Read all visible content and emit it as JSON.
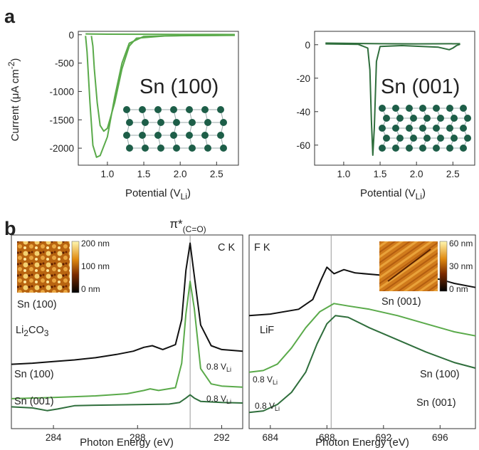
{
  "panel_labels": {
    "a": "a",
    "b": "b"
  },
  "colors": {
    "light_green": "#5aaa4a",
    "dark_green": "#2f6e3c",
    "black": "#111111",
    "grid_line": "#999999",
    "atom": "#1d5e48"
  },
  "chart_data": [
    {
      "type": "line",
      "panel": "a-left",
      "material_label": "Sn (100)",
      "xlabel": "Potential (V",
      "xlabel_sub": "Li",
      "xlabel_close": ")",
      "ylabel": "Current (μA cm",
      "ylabel_sup": "-2",
      "ylabel_close": ")",
      "xlim": [
        0.6,
        2.8
      ],
      "ylim": [
        -2300,
        60
      ],
      "xticks": [
        1.0,
        1.5,
        2.0,
        2.5
      ],
      "xtick_labels": [
        "1.0",
        "1.5",
        "2.0",
        "2.5"
      ],
      "yticks": [
        0,
        -500,
        -1000,
        -1500,
        -2000
      ],
      "ytick_labels": [
        "0",
        "-500",
        "-1000",
        "-1500",
        "-2000"
      ],
      "series": [
        {
          "color": "#5aaa4a",
          "x": [
            2.75,
            2.0,
            1.5,
            1.3,
            1.2,
            1.1,
            1.0,
            0.9,
            0.85,
            0.8,
            0.76,
            0.72,
            0.7
          ],
          "y": [
            -10,
            -15,
            -30,
            -150,
            -500,
            -1100,
            -1800,
            -2130,
            -2160,
            -1950,
            -1200,
            -300,
            -20
          ]
        },
        {
          "color": "#5aaa4a",
          "x": [
            2.75,
            1.8,
            1.4,
            1.3,
            1.2,
            1.1,
            1.0,
            0.95,
            0.9,
            0.86,
            0.82,
            0.8,
            0.78
          ],
          "y": [
            -8,
            -20,
            -60,
            -200,
            -600,
            -1200,
            -1650,
            -1700,
            -1600,
            -1200,
            -600,
            -200,
            -20
          ]
        },
        {
          "color": "#5aaa4a",
          "x": [
            0.7,
            1.0,
            1.5,
            2.0,
            2.5,
            2.75
          ],
          "y": [
            15,
            10,
            8,
            5,
            5,
            4
          ]
        }
      ]
    },
    {
      "type": "line",
      "panel": "a-right",
      "material_label": "Sn (001)",
      "xlabel": "Potential (V",
      "xlabel_sub": "Li",
      "xlabel_close": ")",
      "xlim": [
        0.6,
        2.8
      ],
      "ylim": [
        -72,
        8
      ],
      "xticks": [
        1.0,
        1.5,
        2.0,
        2.5
      ],
      "xtick_labels": [
        "1.0",
        "1.5",
        "2.0",
        "2.5"
      ],
      "yticks": [
        0,
        -20,
        -40,
        -60
      ],
      "ytick_labels": [
        "0",
        "-20",
        "-40",
        "-60"
      ],
      "series": [
        {
          "color": "#2f6e3c",
          "x": [
            0.75,
            1.2,
            1.33,
            1.36,
            1.38,
            1.4,
            1.42,
            1.45,
            1.5,
            1.8,
            2.3,
            2.45,
            2.5,
            2.55,
            2.6
          ],
          "y": [
            0.5,
            0.2,
            -2,
            -15,
            -45,
            -66,
            -50,
            -10,
            -1,
            -0.5,
            -1.5,
            -3,
            -2,
            -0.5,
            0.3
          ]
        },
        {
          "color": "#2f6e3c",
          "x": [
            0.75,
            1.5,
            2.0,
            2.6
          ],
          "y": [
            1,
            0.6,
            0.5,
            0.6
          ]
        }
      ]
    },
    {
      "type": "line",
      "panel": "b-left",
      "edge_label": "C K",
      "peak_label": "π*",
      "peak_sub": "(C=O)",
      "xlabel": "Photon Energy (eV)",
      "xlim": [
        282,
        293
      ],
      "xticks": [
        284,
        288,
        292
      ],
      "xtick_labels": [
        "284",
        "288",
        "292"
      ],
      "reference_line_x": 290.5,
      "series": [
        {
          "name": "Li₂CO₃",
          "color": "#111111",
          "x": [
            282,
            283,
            284,
            285,
            286,
            287,
            287.8,
            288.3,
            288.7,
            289.2,
            289.8,
            290.1,
            290.3,
            290.5,
            290.7,
            291,
            291.5,
            292,
            293
          ],
          "y": [
            0.78,
            0.8,
            0.83,
            0.86,
            0.9,
            0.96,
            1.02,
            1.09,
            1.12,
            1.05,
            1.14,
            1.6,
            2.5,
            3.0,
            2.4,
            1.5,
            1.12,
            1.05,
            1.02
          ]
        },
        {
          "name": "Sn (100)",
          "annotation": "0.8 V",
          "annotation_sub": "Li",
          "color": "#5aaa4a",
          "x": [
            282,
            284,
            286,
            287.5,
            288.3,
            288.6,
            289,
            289.8,
            290.1,
            290.3,
            290.5,
            290.7,
            291,
            291.5,
            292,
            293
          ],
          "y": [
            0.15,
            0.17,
            0.2,
            0.24,
            0.3,
            0.33,
            0.3,
            0.35,
            0.8,
            1.7,
            2.3,
            1.8,
            0.7,
            0.42,
            0.38,
            0.36
          ]
        },
        {
          "name": "Sn (001)",
          "annotation": "0.8 V",
          "annotation_sub": "Li",
          "color": "#2f6e3c",
          "x": [
            282,
            283,
            283.7,
            284.2,
            285,
            286,
            288,
            289.5,
            290,
            290.3,
            290.5,
            290.7,
            291,
            292,
            293
          ],
          "y": [
            0.0,
            -0.02,
            -0.07,
            -0.04,
            0.02,
            0.03,
            0.04,
            0.05,
            0.08,
            0.16,
            0.22,
            0.16,
            0.1,
            0.08,
            0.07
          ]
        }
      ],
      "inset": {
        "label": "Sn (100)",
        "colorbar_labels": [
          "200 nm",
          "100 nm",
          "0 nm"
        ]
      }
    },
    {
      "type": "line",
      "panel": "b-right",
      "edge_label": "F K",
      "xlabel": "Photon Energy (eV)",
      "xlim": [
        682.5,
        698.5
      ],
      "xticks": [
        684,
        688,
        692,
        696
      ],
      "xtick_labels": [
        "684",
        "688",
        "692",
        "696"
      ],
      "reference_line_x": 688.3,
      "series": [
        {
          "name": "LiF",
          "color": "#111111",
          "x": [
            682.5,
            684,
            686,
            687,
            687.6,
            688,
            688.5,
            689.2,
            690,
            692,
            694,
            696,
            697,
            698.5
          ],
          "y": [
            1.3,
            1.32,
            1.38,
            1.5,
            1.75,
            1.9,
            1.82,
            1.87,
            1.83,
            1.8,
            1.78,
            1.75,
            1.7,
            1.65
          ]
        },
        {
          "name": "Sn (100)",
          "annotation": "0.8 V",
          "annotation_sub": "Li",
          "color": "#5aaa4a",
          "x": [
            682.5,
            683.5,
            684.5,
            685.5,
            686.5,
            687.5,
            688.5,
            689.5,
            691,
            693,
            695,
            697,
            698.5
          ],
          "y": [
            0.6,
            0.62,
            0.7,
            0.9,
            1.15,
            1.35,
            1.45,
            1.42,
            1.38,
            1.3,
            1.2,
            1.1,
            1.05
          ]
        },
        {
          "name": "Sn (001)",
          "annotation": "0.8 V",
          "annotation_sub": "Li",
          "color": "#2f6e3c",
          "x": [
            682.5,
            683.5,
            684.5,
            685.5,
            686.5,
            687.3,
            688,
            688.6,
            689.5,
            691,
            693,
            695,
            697,
            698.5
          ],
          "y": [
            0.1,
            0.12,
            0.2,
            0.35,
            0.6,
            0.95,
            1.2,
            1.3,
            1.28,
            1.15,
            1.0,
            0.85,
            0.72,
            0.65
          ]
        }
      ],
      "inset": {
        "label": "Sn (001)",
        "colorbar_labels": [
          "60 nm",
          "30 nm",
          "0 nm"
        ]
      }
    }
  ]
}
